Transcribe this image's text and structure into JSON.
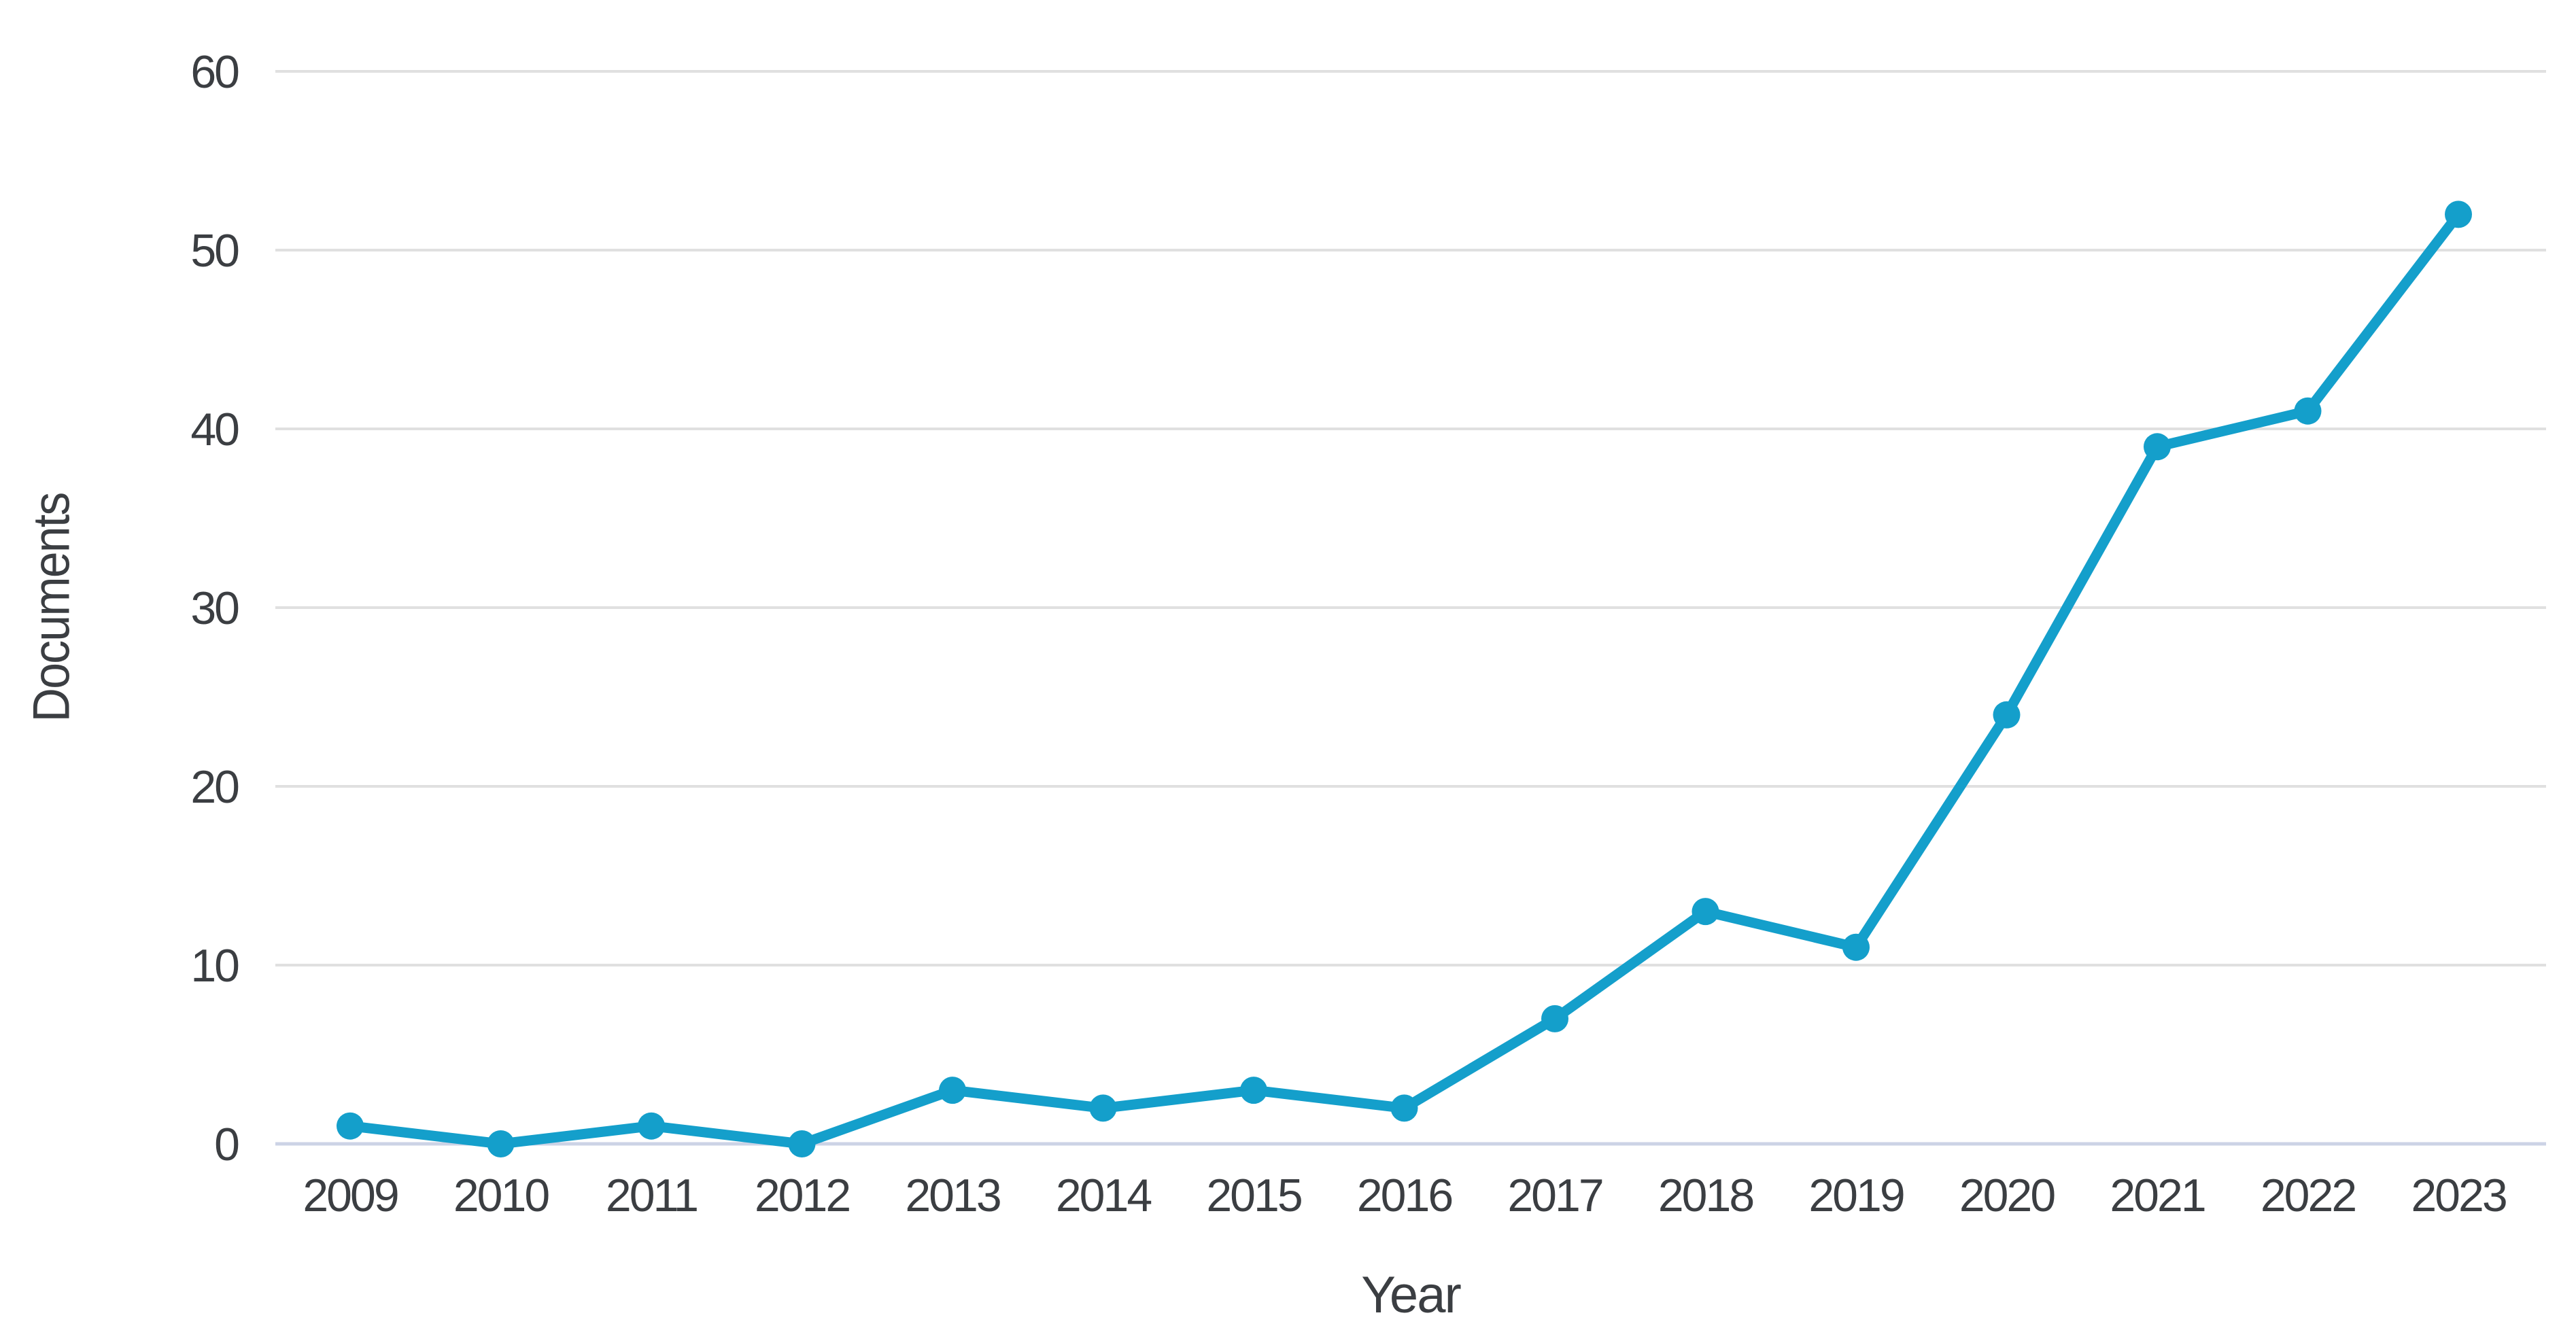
{
  "chart_data": {
    "type": "line",
    "title": "",
    "xlabel": "Year",
    "ylabel": "Documents",
    "categories": [
      "2009",
      "2010",
      "2011",
      "2012",
      "2013",
      "2014",
      "2015",
      "2016",
      "2017",
      "2018",
      "2019",
      "2020",
      "2021",
      "2022",
      "2023"
    ],
    "series": [
      {
        "name": "Documents",
        "values": [
          1,
          0,
          1,
          0,
          3,
          2,
          3,
          2,
          7,
          13,
          11,
          24,
          39,
          41,
          52
        ]
      }
    ],
    "ylim": [
      0,
      60
    ],
    "yticks": [
      0,
      10,
      20,
      30,
      40,
      50,
      60
    ],
    "grid": true,
    "legend_position": "none",
    "colors": {
      "line": "#149FCB",
      "marker": "#149FCB",
      "gridline": "#e0e0e0",
      "baseline": "#ccd3e6",
      "text": "#3b3e42",
      "background": "#ffffff"
    }
  }
}
